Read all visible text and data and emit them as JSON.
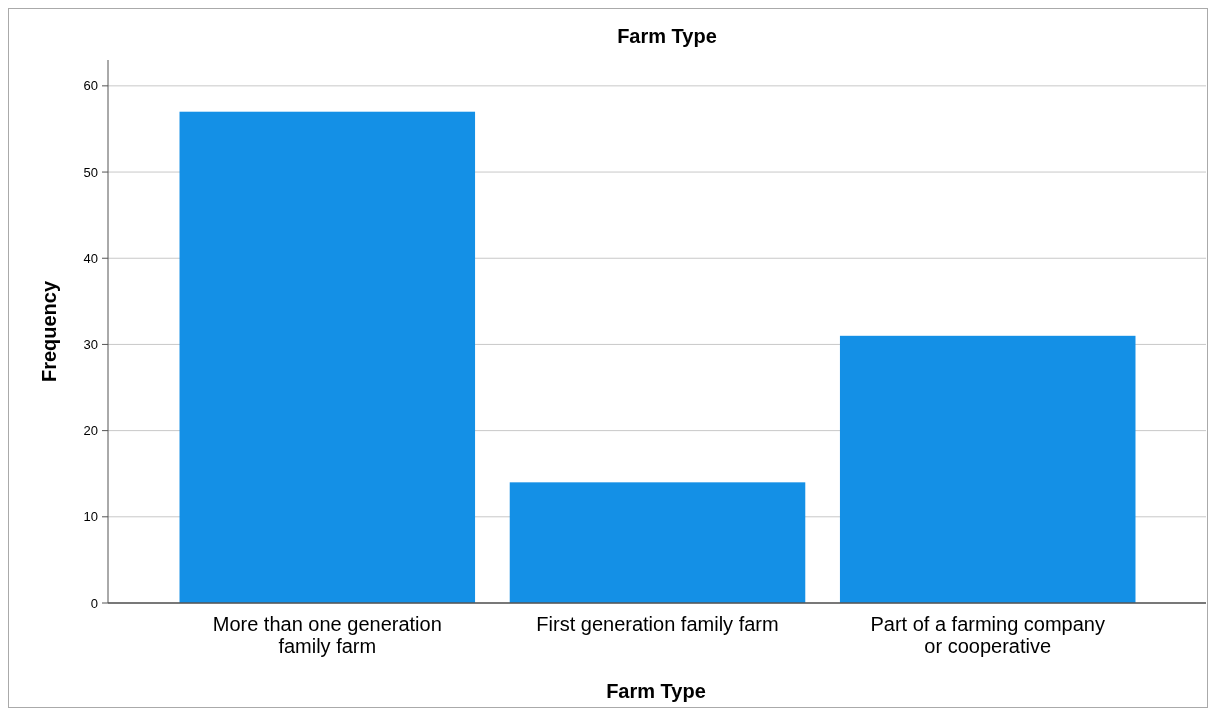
{
  "chart_data": {
    "type": "bar",
    "title": "Farm Type",
    "xlabel": "Farm Type",
    "ylabel": "Frequency",
    "categories": [
      "More than one generation\nfamily farm",
      "First generation family farm",
      "Part of a farming company\nor cooperative"
    ],
    "values": [
      57,
      14,
      31
    ],
    "color": "#1490e6",
    "ylim": [
      0,
      63
    ],
    "yticks": [
      0,
      10,
      20,
      30,
      40,
      50,
      60
    ],
    "grid": "y"
  }
}
